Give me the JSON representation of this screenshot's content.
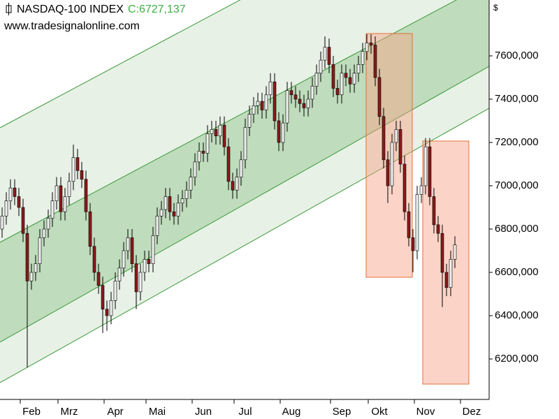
{
  "chart_data": {
    "type": "candlestick",
    "title": "NASDAQ-100 INDEX",
    "close_label": "C:6727,137",
    "source": "www.tradesignalonline.com",
    "y_unit": "$",
    "up_color": "#f0f0f0",
    "down_color": "#8b1a1a",
    "ylim": [
      6013,
      7858
    ],
    "yticks": [
      {
        "value": 6200,
        "label": "6200,000"
      },
      {
        "value": 6400,
        "label": "6400,000"
      },
      {
        "value": 6600,
        "label": "6600,000"
      },
      {
        "value": 6800,
        "label": "6800,000"
      },
      {
        "value": 7000,
        "label": "7000,000"
      },
      {
        "value": 7200,
        "label": "7200,000"
      },
      {
        "value": 7400,
        "label": "7400,000"
      },
      {
        "value": 7600,
        "label": "7600,000"
      }
    ],
    "categories": [
      null,
      null,
      null,
      null,
      null,
      null,
      null,
      "Feb",
      null,
      null,
      null,
      null,
      null,
      null,
      null,
      null,
      "Mrz",
      null,
      null,
      null,
      null,
      null,
      null,
      null,
      null,
      null,
      null,
      "Apr",
      null,
      null,
      null,
      null,
      null,
      null,
      null,
      null,
      null,
      "Mai",
      null,
      null,
      null,
      null,
      null,
      null,
      null,
      null,
      null,
      null,
      "Jun",
      null,
      null,
      null,
      null,
      null,
      null,
      null,
      null,
      null,
      "Jul",
      null,
      null,
      null,
      null,
      null,
      null,
      null,
      null,
      null,
      null,
      "Aug",
      null,
      null,
      null,
      null,
      null,
      null,
      null,
      null,
      null,
      null,
      null,
      "Sep",
      null,
      null,
      null,
      null,
      null,
      null,
      null,
      null,
      "Okt",
      null,
      null,
      null,
      null,
      null,
      null,
      null,
      null,
      null,
      null,
      "Nov",
      null,
      null,
      null,
      null,
      null,
      null,
      null,
      null,
      null,
      null,
      "Dez"
    ],
    "open": [
      6800,
      6860,
      6930,
      6990,
      6950,
      6900,
      6780,
      6560,
      6600,
      6640,
      6760,
      6800,
      6850,
      6930,
      7000,
      6880,
      6950,
      7020,
      7130,
      7070,
      7030,
      6880,
      6720,
      6600,
      6540,
      6430,
      6400,
      6470,
      6560,
      6620,
      6700,
      6760,
      6640,
      6510,
      6600,
      6660,
      6640,
      6770,
      6860,
      6890,
      6950,
      6880,
      6860,
      6920,
      6940,
      6980,
      7040,
      7110,
      7160,
      7150,
      7240,
      7260,
      7230,
      7280,
      7180,
      7020,
      6980,
      7040,
      7120,
      7270,
      7330,
      7370,
      7390,
      7350,
      7420,
      7480,
      7300,
      7200,
      7290,
      7440,
      7420,
      7400,
      7380,
      7360,
      7400,
      7460,
      7520,
      7580,
      7640,
      7560,
      7450,
      7420,
      7520,
      7500,
      7470,
      7520,
      7560,
      7620,
      7660,
      7650,
      7500,
      7320,
      7120,
      7000,
      7200,
      7260,
      7100,
      6880,
      6760,
      6700,
      6960,
      7000,
      7180,
      6950,
      6820,
      6780,
      6600,
      6530,
      6660,
      null,
      null,
      null,
      null
    ],
    "high": [
      6900,
      6970,
      7030,
      7030,
      6990,
      6940,
      6820,
      6640,
      6680,
      6800,
      6840,
      6890,
      6970,
      7040,
      7040,
      6990,
      7060,
      7190,
      7170,
      7110,
      7070,
      6920,
      6760,
      6640,
      6580,
      6470,
      6510,
      6600,
      6660,
      6740,
      6800,
      6800,
      6680,
      6640,
      6700,
      6700,
      6810,
      6900,
      6930,
      6990,
      6990,
      6920,
      6960,
      6980,
      7020,
      7080,
      7150,
      7200,
      7200,
      7280,
      7300,
      7300,
      7320,
      7320,
      7220,
      7060,
      7080,
      7160,
      7310,
      7370,
      7410,
      7430,
      7430,
      7460,
      7520,
      7520,
      7340,
      7330,
      7480,
      7480,
      7460,
      7440,
      7420,
      7440,
      7500,
      7560,
      7620,
      7690,
      7680,
      7600,
      7490,
      7560,
      7560,
      7540,
      7560,
      7600,
      7660,
      7700,
      7700,
      7690,
      7540,
      7360,
      7160,
      7240,
      7300,
      7300,
      7140,
      6920,
      6800,
      7000,
      7040,
      7220,
      7220,
      6990,
      6860,
      6820,
      6640,
      6700,
      6767,
      null,
      null,
      null,
      null
    ],
    "low": [
      6760,
      6820,
      6890,
      6910,
      6860,
      6740,
      6160,
      6520,
      6560,
      6600,
      6720,
      6760,
      6810,
      6890,
      6840,
      6840,
      6910,
      6980,
      7030,
      6990,
      6840,
      6680,
      6560,
      6500,
      6320,
      6330,
      6360,
      6430,
      6520,
      6580,
      6660,
      6600,
      6430,
      6470,
      6560,
      6600,
      6600,
      6730,
      6820,
      6850,
      6840,
      6820,
      6820,
      6880,
      6900,
      6940,
      7000,
      7070,
      7110,
      7110,
      7200,
      7190,
      7190,
      7140,
      6980,
      6940,
      6940,
      7000,
      7080,
      7230,
      7290,
      7330,
      7310,
      7310,
      7380,
      7260,
      7160,
      7160,
      7250,
      7380,
      7360,
      7340,
      7320,
      7320,
      7360,
      7420,
      7480,
      7540,
      7520,
      7410,
      7380,
      7380,
      7460,
      7430,
      7430,
      7480,
      7520,
      7580,
      7610,
      7460,
      7280,
      7080,
      6920,
      6960,
      7160,
      7060,
      6840,
      6720,
      6600,
      6660,
      6920,
      6960,
      6910,
      6780,
      6740,
      6440,
      6490,
      6490,
      6620,
      null,
      null,
      null,
      null
    ],
    "close": [
      6860,
      6930,
      6990,
      6950,
      6900,
      6780,
      6560,
      6600,
      6640,
      6760,
      6800,
      6850,
      6930,
      7000,
      6880,
      6950,
      7020,
      7130,
      7070,
      7030,
      6880,
      6720,
      6600,
      6540,
      6430,
      6400,
      6470,
      6560,
      6620,
      6700,
      6760,
      6640,
      6510,
      6600,
      6660,
      6640,
      6770,
      6860,
      6890,
      6950,
      6880,
      6860,
      6920,
      6940,
      6980,
      7040,
      7110,
      7160,
      7150,
      7240,
      7260,
      7230,
      7280,
      7180,
      7020,
      6980,
      7040,
      7120,
      7270,
      7330,
      7370,
      7390,
      7350,
      7420,
      7480,
      7300,
      7200,
      7290,
      7440,
      7420,
      7400,
      7380,
      7360,
      7400,
      7460,
      7520,
      7580,
      7640,
      7560,
      7450,
      7420,
      7520,
      7500,
      7470,
      7520,
      7560,
      7620,
      7660,
      7650,
      7500,
      7320,
      7120,
      7000,
      7200,
      7260,
      7100,
      6880,
      6760,
      6700,
      6960,
      7000,
      7180,
      6950,
      6820,
      6780,
      6600,
      6530,
      6660,
      6727.137,
      null,
      null,
      null,
      null
    ]
  }
}
